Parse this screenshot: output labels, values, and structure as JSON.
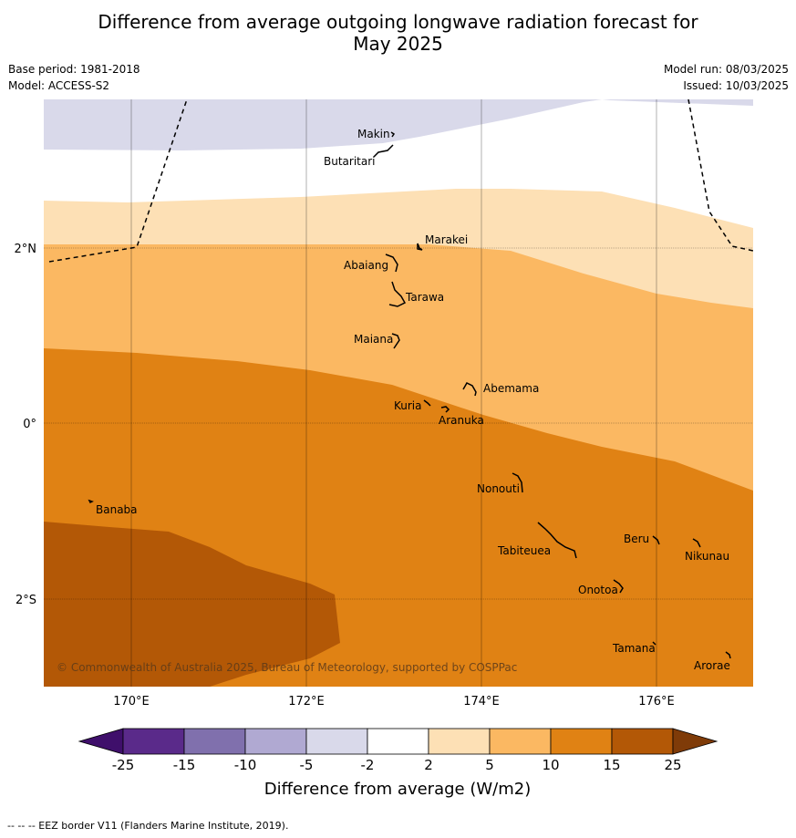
{
  "title_line1": "Difference from average outgoing longwave radiation forecast for",
  "title_line2": "May 2025",
  "base_period": "Base period: 1981-2018",
  "model": "Model: ACCESS-S2",
  "model_run": "Model run: 08/03/2025",
  "issued": "Issued: 10/03/2025",
  "copyright": "© Commonwealth of Australia 2025, Bureau of Meteorology, supported by COSPPac",
  "footnote": "--  --  -- EEZ border V11 (Flanders Marine Institute, 2019).",
  "axes": {
    "lon_ticks": [
      "170°E",
      "172°E",
      "174°E",
      "176°E"
    ],
    "lat_ticks": [
      "2°N",
      "0°",
      "2°S"
    ]
  },
  "places": {
    "makin": "Makin",
    "butaritari": "Butaritari",
    "marakei": "Marakei",
    "abaiang": "Abaiang",
    "tarawa": "Tarawa",
    "maiana": "Maiana",
    "abemama": "Abemama",
    "kuria": "Kuria",
    "aranuka": "Aranuka",
    "nonouti": "Nonouti",
    "banaba": "Banaba",
    "beru": "Beru",
    "tabiteuea": "Tabiteuea",
    "nikunau": "Nikunau",
    "onotoa": "Onotoa",
    "tamana": "Tamana",
    "arorae": "Arorae"
  },
  "legend": {
    "label": "Difference from average (W/m2)",
    "ticks": [
      "-25",
      "-15",
      "-10",
      "-5",
      "-2",
      "2",
      "5",
      "10",
      "15",
      "25"
    ],
    "colors": [
      "#3f0f6b",
      "#5a2a8a",
      "#8070ad",
      "#b0a9d2",
      "#d9d9ea",
      "#ffffff",
      "#fde0b5",
      "#fbb862",
      "#e08214",
      "#b35806",
      "#7f3b08"
    ]
  }
}
